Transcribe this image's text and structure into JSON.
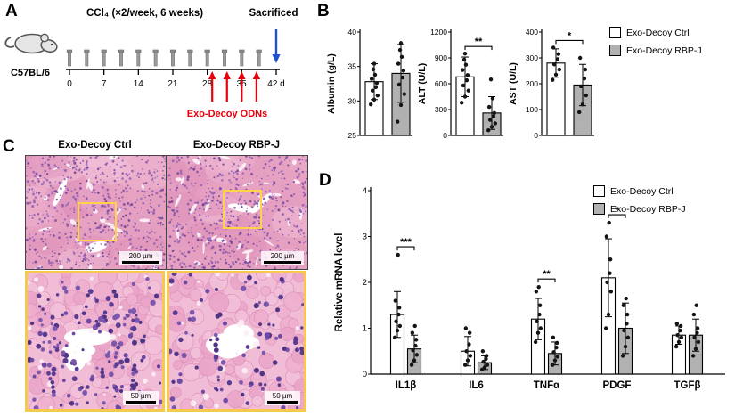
{
  "figure": {
    "panel_a": {
      "label": "A",
      "mouse_strain": "C57BL/6",
      "treatment": "CCl₄ (×2/week, 6 weeks)",
      "sacrificed": "Sacrificed",
      "odn": "Exo-Decoy ODNs",
      "ticks": [
        "0",
        "7",
        "14",
        "21",
        "28",
        "35",
        "42 d"
      ]
    },
    "panel_b": {
      "label": "B",
      "legend": [
        "Exo-Decoy Ctrl",
        "Exo-Decoy RBP-J"
      ]
    },
    "panel_c": {
      "label": "C",
      "headers": [
        "Exo-Decoy Ctrl",
        "Exo-Decoy RBP-J"
      ],
      "scale_top": "200 µm",
      "scale_bottom": "50 µm"
    },
    "panel_d": {
      "label": "D",
      "legend": [
        "Exo-Decoy Ctrl",
        "Exo-Decoy RBP-J"
      ]
    }
  },
  "colors": {
    "ctrl_fill": "#ffffff",
    "rbpj_fill": "#b1b1b1",
    "red": "#e8000b",
    "blue": "#2050d0",
    "roi_yellow": "#ffd24a"
  },
  "chart_data": [
    {
      "type": "bar",
      "ylabel": "Albumin (g/L)",
      "ylim": [
        25,
        40
      ],
      "yticks": [
        25,
        30,
        35,
        40
      ],
      "group_names": [
        "Exo-Decoy Ctrl",
        "Exo-Decoy RBP-J"
      ],
      "values": [
        32.8,
        34
      ],
      "errors": [
        2.6,
        4.2
      ],
      "points": [
        [
          29.5,
          30.2,
          30.8,
          31.5,
          32,
          32.6,
          33.2,
          33.8,
          34.6,
          35.4
        ],
        [
          27,
          29.4,
          31,
          32.4,
          33.4,
          34.4,
          35.4,
          36.4,
          37.4,
          38.4
        ]
      ],
      "sig": null
    },
    {
      "type": "bar",
      "ylabel": "ALT (U/L)",
      "ylim": [
        0,
        1200
      ],
      "yticks": [
        0,
        300,
        600,
        900,
        1200
      ],
      "group_names": [
        "Exo-Decoy Ctrl",
        "Exo-Decoy RBP-J"
      ],
      "values": [
        680,
        260
      ],
      "errors": [
        230,
        190
      ],
      "points": [
        [
          380,
          450,
          520,
          580,
          640,
          700,
          760,
          820,
          880,
          950
        ],
        [
          60,
          100,
          140,
          180,
          220,
          260,
          330,
          430,
          650
        ]
      ],
      "sig": "**"
    },
    {
      "type": "bar",
      "ylabel": "AST (U/L)",
      "ylim": [
        0,
        400
      ],
      "yticks": [
        0,
        100,
        200,
        300,
        400
      ],
      "group_names": [
        "Exo-Decoy Ctrl",
        "Exo-Decoy RBP-J"
      ],
      "values": [
        280,
        195
      ],
      "errors": [
        55,
        80
      ],
      "points": [
        [
          215,
          235,
          255,
          275,
          295,
          315,
          340
        ],
        [
          90,
          120,
          155,
          190,
          220,
          255,
          300
        ]
      ],
      "sig": "*"
    },
    {
      "type": "grouped_bar",
      "ylabel": "Relative mRNA level",
      "ylim": [
        0,
        4
      ],
      "yticks": [
        0,
        1,
        2,
        3,
        4
      ],
      "categories": [
        "IL1β",
        "IL6",
        "TNFα",
        "PDGF",
        "TGFβ"
      ],
      "series": [
        {
          "name": "Exo-Decoy Ctrl",
          "values": [
            1.3,
            0.5,
            1.2,
            2.1,
            0.85
          ],
          "errors": [
            0.5,
            0.32,
            0.45,
            0.85,
            0.2
          ],
          "points": [
            [
              0.8,
              0.95,
              1.05,
              1.15,
              1.3,
              1.45,
              1.6,
              2.6
            ],
            [
              0.2,
              0.3,
              0.4,
              0.5,
              0.65,
              0.9,
              1.0
            ],
            [
              0.7,
              0.9,
              1.0,
              1.15,
              1.3,
              1.5,
              1.8,
              1.9
            ],
            [
              1.0,
              1.3,
              1.8,
              2.0,
              2.2,
              2.5,
              3.0,
              3.3
            ],
            [
              0.6,
              0.7,
              0.8,
              0.85,
              0.95,
              1.05,
              1.1
            ]
          ]
        },
        {
          "name": "Exo-Decoy RBP-J",
          "values": [
            0.55,
            0.25,
            0.45,
            1.0,
            0.85
          ],
          "errors": [
            0.3,
            0.15,
            0.25,
            0.55,
            0.35
          ],
          "points": [
            [
              0.2,
              0.3,
              0.42,
              0.52,
              0.62,
              0.75,
              0.9,
              1.05
            ],
            [
              0.1,
              0.15,
              0.2,
              0.27,
              0.33,
              0.4,
              0.5
            ],
            [
              0.2,
              0.3,
              0.38,
              0.48,
              0.58,
              0.68,
              0.8
            ],
            [
              0.4,
              0.6,
              0.8,
              0.95,
              1.1,
              1.3,
              1.5,
              1.65
            ],
            [
              0.4,
              0.55,
              0.7,
              0.8,
              0.9,
              1.0,
              1.3,
              1.5
            ]
          ]
        }
      ],
      "sig": [
        {
          "cat": 0,
          "label": "***"
        },
        {
          "cat": 2,
          "label": "**"
        },
        {
          "cat": 3,
          "label": "*"
        }
      ]
    }
  ]
}
